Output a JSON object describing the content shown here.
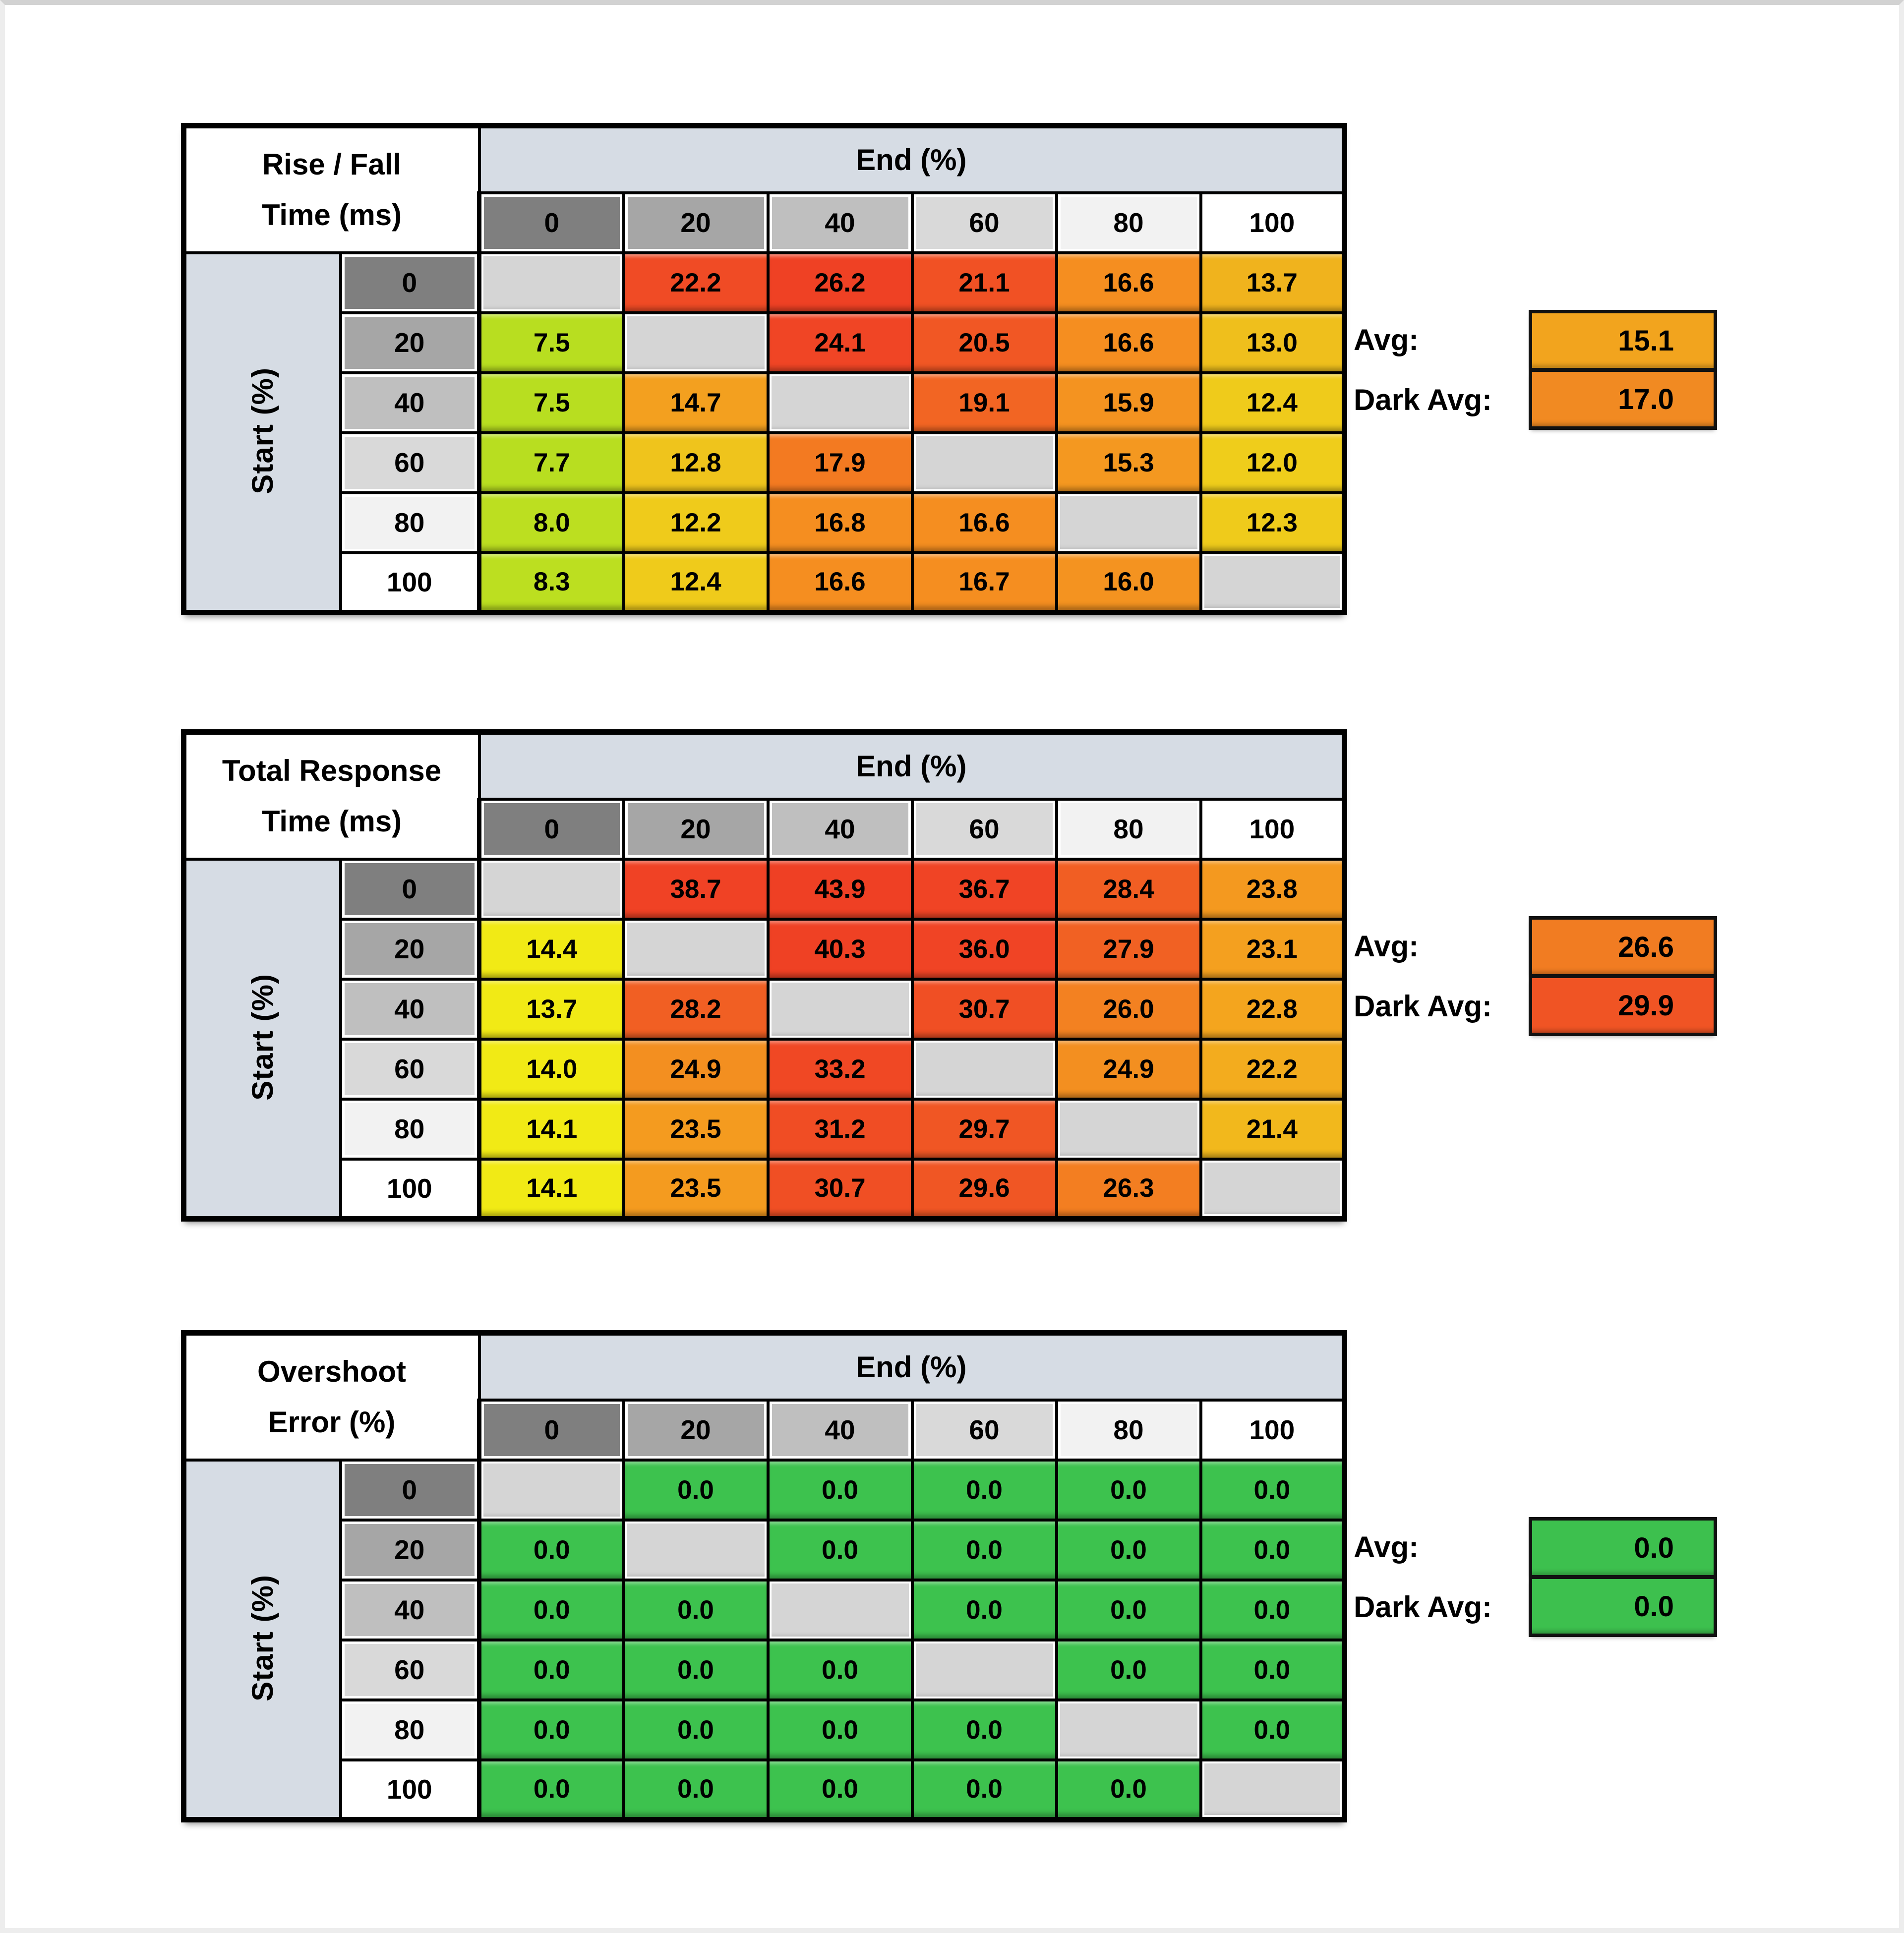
{
  "frame": {
    "top_color": "#D2D2D2",
    "edge_color": "#EDEDED",
    "bg": "#FFFFFF"
  },
  "shared": {
    "end_header": "End (%)",
    "start_label": "Start (%)",
    "cols": [
      "0",
      "20",
      "40",
      "60",
      "80",
      "100"
    ],
    "rows": [
      "0",
      "20",
      "40",
      "60",
      "80",
      "100"
    ],
    "header_shades": [
      "#7F7F7F",
      "#A6A6A6",
      "#BFBFBF",
      "#D9D9D9",
      "#F2F2F2",
      "#FFFFFF"
    ],
    "band_bg": "#D6DCE4",
    "diag_color": "#D5D5D5",
    "avg_label": "Avg:",
    "dark_avg_label": "Dark Avg:"
  },
  "tables": [
    {
      "name": "rise-fall-time",
      "title": [
        "Rise / Fall",
        "Time (ms)"
      ],
      "avg": {
        "value": "15.1",
        "color": "#F2A41E"
      },
      "dark_avg": {
        "value": "17.0",
        "color": "#F18A22"
      },
      "cells": [
        [
          {
            "v": "",
            "c": ""
          },
          {
            "v": "22.2",
            "c": "#F04B25"
          },
          {
            "v": "26.2",
            "c": "#EF4124"
          },
          {
            "v": "21.1",
            "c": "#F15124"
          },
          {
            "v": "16.6",
            "c": "#F58E20"
          },
          {
            "v": "13.7",
            "c": "#F0B31D"
          }
        ],
        [
          {
            "v": "7.5",
            "c": "#B8DE20"
          },
          {
            "v": "",
            "c": ""
          },
          {
            "v": "24.1",
            "c": "#F04525"
          },
          {
            "v": "20.5",
            "c": "#F15724"
          },
          {
            "v": "16.6",
            "c": "#F58E20"
          },
          {
            "v": "13.0",
            "c": "#EFBF1C"
          }
        ],
        [
          {
            "v": "7.5",
            "c": "#B8DE20"
          },
          {
            "v": "14.7",
            "c": "#F3A01F"
          },
          {
            "v": "",
            "c": ""
          },
          {
            "v": "19.1",
            "c": "#F26523"
          },
          {
            "v": "15.9",
            "c": "#F49320"
          },
          {
            "v": "12.4",
            "c": "#EFCB1B"
          }
        ],
        [
          {
            "v": "7.7",
            "c": "#B8DE20"
          },
          {
            "v": "12.8",
            "c": "#EFC41C"
          },
          {
            "v": "17.9",
            "c": "#F37A21"
          },
          {
            "v": "",
            "c": ""
          },
          {
            "v": "15.3",
            "c": "#F49820"
          },
          {
            "v": "12.0",
            "c": "#EFCD1B"
          }
        ],
        [
          {
            "v": "8.0",
            "c": "#BCDF20"
          },
          {
            "v": "12.2",
            "c": "#EFCB1B"
          },
          {
            "v": "16.8",
            "c": "#F58E20"
          },
          {
            "v": "16.6",
            "c": "#F58E20"
          },
          {
            "v": "",
            "c": ""
          },
          {
            "v": "12.3",
            "c": "#EFCB1B"
          }
        ],
        [
          {
            "v": "8.3",
            "c": "#BCDF20"
          },
          {
            "v": "12.4",
            "c": "#EFCB1B"
          },
          {
            "v": "16.6",
            "c": "#F58E20"
          },
          {
            "v": "16.7",
            "c": "#F58E20"
          },
          {
            "v": "16.0",
            "c": "#F49320"
          },
          {
            "v": "",
            "c": ""
          }
        ]
      ]
    },
    {
      "name": "total-response-time",
      "title": [
        "Total Response",
        "Time (ms)"
      ],
      "avg": {
        "value": "26.6",
        "color": "#F17C22"
      },
      "dark_avg": {
        "value": "29.9",
        "color": "#F05424"
      },
      "cells": [
        [
          {
            "v": "",
            "c": ""
          },
          {
            "v": "38.7",
            "c": "#F04225"
          },
          {
            "v": "43.9",
            "c": "#EF4024"
          },
          {
            "v": "36.7",
            "c": "#F04425"
          },
          {
            "v": "28.4",
            "c": "#F15E23"
          },
          {
            "v": "23.8",
            "c": "#F4991F"
          }
        ],
        [
          {
            "v": "14.4",
            "c": "#F1EA15"
          },
          {
            "v": "",
            "c": ""
          },
          {
            "v": "40.3",
            "c": "#EF4124"
          },
          {
            "v": "36.0",
            "c": "#F04425"
          },
          {
            "v": "27.9",
            "c": "#F16123"
          },
          {
            "v": "23.1",
            "c": "#F4A01F"
          }
        ],
        [
          {
            "v": "13.7",
            "c": "#F1EA15"
          },
          {
            "v": "28.2",
            "c": "#F15F23"
          },
          {
            "v": "",
            "c": ""
          },
          {
            "v": "30.7",
            "c": "#F04F24"
          },
          {
            "v": "26.0",
            "c": "#F38121"
          },
          {
            "v": "22.8",
            "c": "#F4A51E"
          }
        ],
        [
          {
            "v": "14.0",
            "c": "#F1EA15"
          },
          {
            "v": "24.9",
            "c": "#F38F20"
          },
          {
            "v": "33.2",
            "c": "#F04824"
          },
          {
            "v": "",
            "c": ""
          },
          {
            "v": "24.9",
            "c": "#F38F20"
          },
          {
            "v": "22.2",
            "c": "#F3AC1E"
          }
        ],
        [
          {
            "v": "14.1",
            "c": "#F1EA15"
          },
          {
            "v": "23.5",
            "c": "#F49B1F"
          },
          {
            "v": "31.2",
            "c": "#F04D24"
          },
          {
            "v": "29.7",
            "c": "#F05624"
          },
          {
            "v": "",
            "c": ""
          },
          {
            "v": "21.4",
            "c": "#F2B81C"
          }
        ],
        [
          {
            "v": "14.1",
            "c": "#F1EA15"
          },
          {
            "v": "23.5",
            "c": "#F49B1F"
          },
          {
            "v": "30.7",
            "c": "#F04F24"
          },
          {
            "v": "29.6",
            "c": "#F05624"
          },
          {
            "v": "26.3",
            "c": "#F37E21"
          },
          {
            "v": "",
            "c": ""
          }
        ]
      ]
    },
    {
      "name": "overshoot-error",
      "title": [
        "Overshoot",
        "Error (%)"
      ],
      "avg": {
        "value": "0.0",
        "color": "#3DC04E"
      },
      "dark_avg": {
        "value": "0.0",
        "color": "#3DC04E"
      },
      "cells": [
        [
          {
            "v": "",
            "c": ""
          },
          {
            "v": "0.0",
            "c": "#3DC24E"
          },
          {
            "v": "0.0",
            "c": "#3DC24E"
          },
          {
            "v": "0.0",
            "c": "#3DC24E"
          },
          {
            "v": "0.0",
            "c": "#3DC24E"
          },
          {
            "v": "0.0",
            "c": "#3DC24E"
          }
        ],
        [
          {
            "v": "0.0",
            "c": "#3DC24E"
          },
          {
            "v": "",
            "c": ""
          },
          {
            "v": "0.0",
            "c": "#3DC24E"
          },
          {
            "v": "0.0",
            "c": "#3DC24E"
          },
          {
            "v": "0.0",
            "c": "#3DC24E"
          },
          {
            "v": "0.0",
            "c": "#3DC24E"
          }
        ],
        [
          {
            "v": "0.0",
            "c": "#3DC24E"
          },
          {
            "v": "0.0",
            "c": "#3DC24E"
          },
          {
            "v": "",
            "c": ""
          },
          {
            "v": "0.0",
            "c": "#3DC24E"
          },
          {
            "v": "0.0",
            "c": "#3DC24E"
          },
          {
            "v": "0.0",
            "c": "#3DC24E"
          }
        ],
        [
          {
            "v": "0.0",
            "c": "#3DC24E"
          },
          {
            "v": "0.0",
            "c": "#3DC24E"
          },
          {
            "v": "0.0",
            "c": "#3DC24E"
          },
          {
            "v": "",
            "c": ""
          },
          {
            "v": "0.0",
            "c": "#3DC24E"
          },
          {
            "v": "0.0",
            "c": "#3DC24E"
          }
        ],
        [
          {
            "v": "0.0",
            "c": "#3DC24E"
          },
          {
            "v": "0.0",
            "c": "#3DC24E"
          },
          {
            "v": "0.0",
            "c": "#3DC24E"
          },
          {
            "v": "0.0",
            "c": "#3DC24E"
          },
          {
            "v": "",
            "c": ""
          },
          {
            "v": "0.0",
            "c": "#3DC24E"
          }
        ],
        [
          {
            "v": "0.0",
            "c": "#3DC24E"
          },
          {
            "v": "0.0",
            "c": "#3DC24E"
          },
          {
            "v": "0.0",
            "c": "#3DC24E"
          },
          {
            "v": "0.0",
            "c": "#3DC24E"
          },
          {
            "v": "0.0",
            "c": "#3DC24E"
          },
          {
            "v": "",
            "c": ""
          }
        ]
      ]
    }
  ],
  "chart_data": [
    {
      "type": "heatmap",
      "title": "Rise / Fall Time (ms)",
      "xlabel": "End (%)",
      "ylabel": "Start (%)",
      "x": [
        0,
        20,
        40,
        60,
        80,
        100
      ],
      "y": [
        0,
        20,
        40,
        60,
        80,
        100
      ],
      "values": [
        [
          null,
          22.2,
          26.2,
          21.1,
          16.6,
          13.7
        ],
        [
          7.5,
          null,
          24.1,
          20.5,
          16.6,
          13.0
        ],
        [
          7.5,
          14.7,
          null,
          19.1,
          15.9,
          12.4
        ],
        [
          7.7,
          12.8,
          17.9,
          null,
          15.3,
          12.0
        ],
        [
          8.0,
          12.2,
          16.8,
          16.6,
          null,
          12.3
        ],
        [
          8.3,
          12.4,
          16.6,
          16.7,
          16.0,
          null
        ]
      ],
      "annotations": {
        "avg": 15.1,
        "dark_avg": 17.0
      },
      "color_scale": "green-yellow-orange-red (low to high)"
    },
    {
      "type": "heatmap",
      "title": "Total Response Time (ms)",
      "xlabel": "End (%)",
      "ylabel": "Start (%)",
      "x": [
        0,
        20,
        40,
        60,
        80,
        100
      ],
      "y": [
        0,
        20,
        40,
        60,
        80,
        100
      ],
      "values": [
        [
          null,
          38.7,
          43.9,
          36.7,
          28.4,
          23.8
        ],
        [
          14.4,
          null,
          40.3,
          36.0,
          27.9,
          23.1
        ],
        [
          13.7,
          28.2,
          null,
          30.7,
          26.0,
          22.8
        ],
        [
          14.0,
          24.9,
          33.2,
          null,
          24.9,
          22.2
        ],
        [
          14.1,
          23.5,
          31.2,
          29.7,
          null,
          21.4
        ],
        [
          14.1,
          23.5,
          30.7,
          29.6,
          26.3,
          null
        ]
      ],
      "annotations": {
        "avg": 26.6,
        "dark_avg": 29.9
      },
      "color_scale": "yellow-orange-red (low to high)"
    },
    {
      "type": "heatmap",
      "title": "Overshoot Error (%)",
      "xlabel": "End (%)",
      "ylabel": "Start (%)",
      "x": [
        0,
        20,
        40,
        60,
        80,
        100
      ],
      "y": [
        0,
        20,
        40,
        60,
        80,
        100
      ],
      "values": [
        [
          null,
          0.0,
          0.0,
          0.0,
          0.0,
          0.0
        ],
        [
          0.0,
          null,
          0.0,
          0.0,
          0.0,
          0.0
        ],
        [
          0.0,
          0.0,
          null,
          0.0,
          0.0,
          0.0
        ],
        [
          0.0,
          0.0,
          0.0,
          null,
          0.0,
          0.0
        ],
        [
          0.0,
          0.0,
          0.0,
          0.0,
          null,
          0.0
        ],
        [
          0.0,
          0.0,
          0.0,
          0.0,
          0.0,
          null
        ]
      ],
      "annotations": {
        "avg": 0.0,
        "dark_avg": 0.0
      },
      "color_scale": "all green (zero error)"
    }
  ]
}
